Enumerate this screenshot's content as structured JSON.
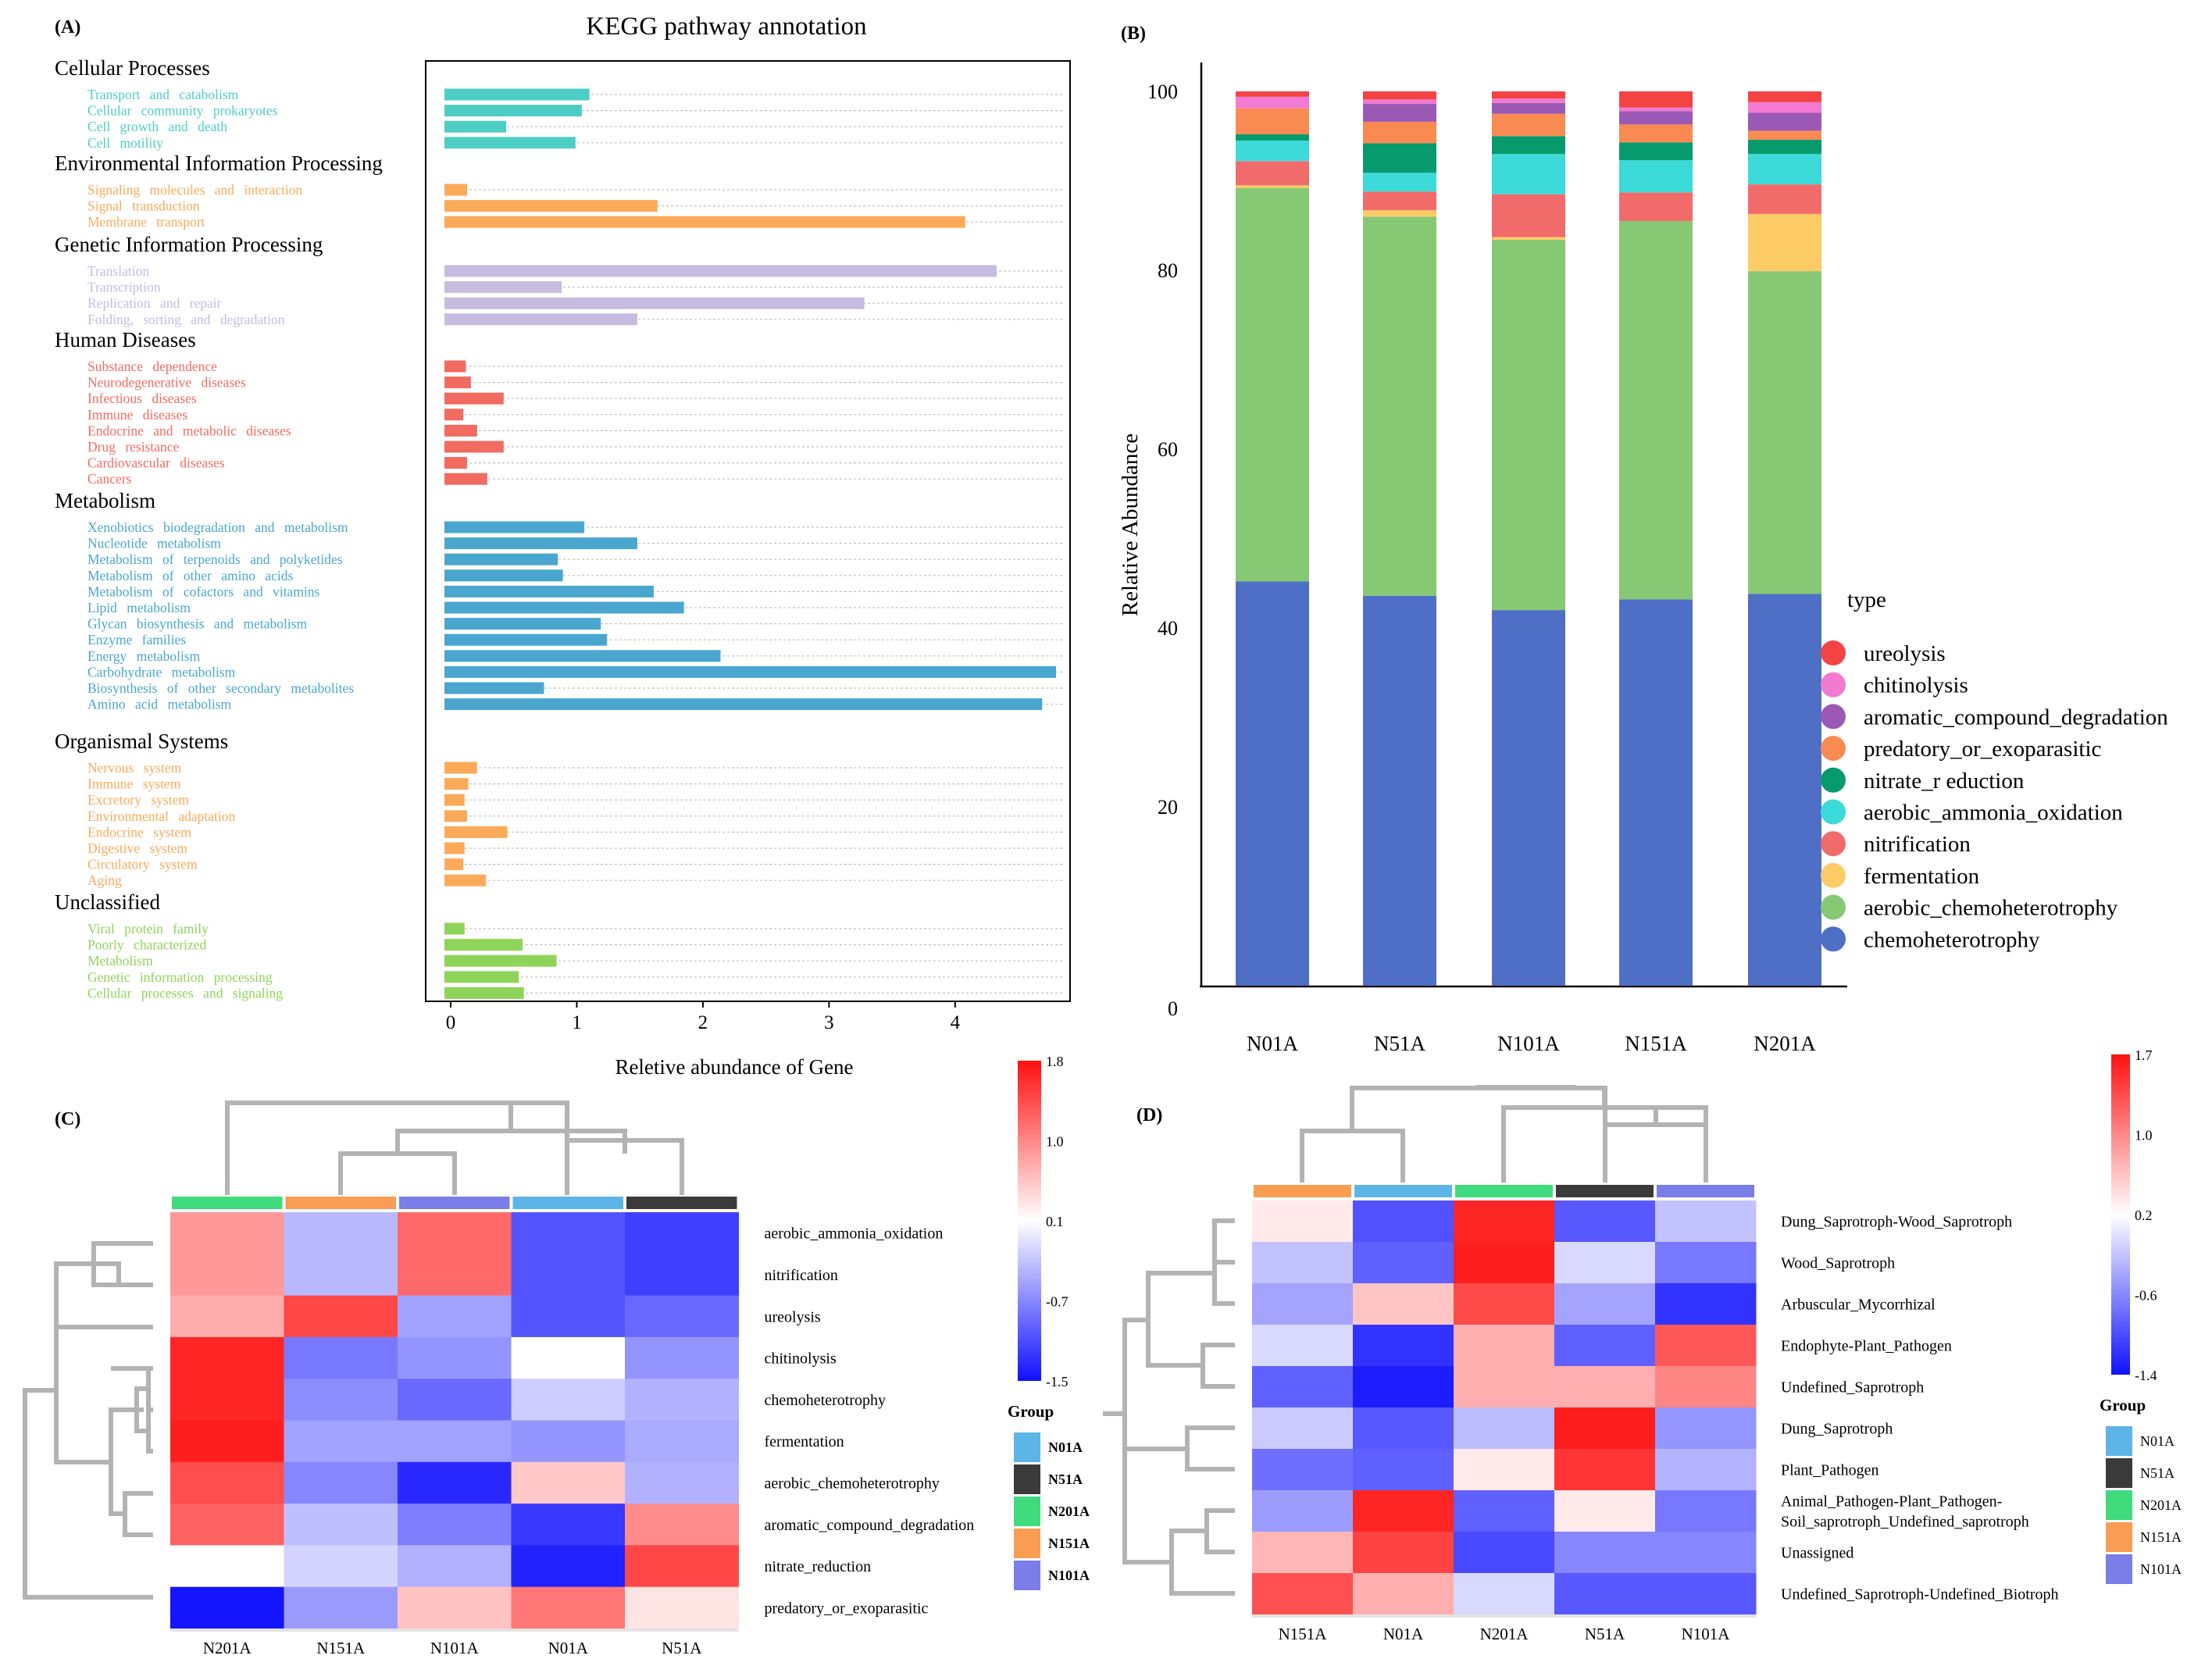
{
  "chart_data": [
    {
      "panel": "(A)",
      "type": "bar",
      "orientation": "horizontal",
      "title": "KEGG pathway annotation",
      "xlabel": "Reletive abundance of Gene",
      "xlim": [
        -0.18,
        4.8
      ],
      "xticks": [
        0,
        1,
        2,
        3,
        4
      ],
      "groups": [
        {
          "name": "Cellular Processes",
          "color": "#4ecdc4",
          "items": [
            {
              "label": "Transport and catabolism",
              "value": 1.1
            },
            {
              "label": "Cellular community prokaryotes",
              "value": 1.04
            },
            {
              "label": "Cell growth and death",
              "value": 0.44
            },
            {
              "label": "Cell motility",
              "value": 0.99
            }
          ]
        },
        {
          "name": "Environmental Information Processing",
          "color": "#fbaa5a",
          "items": [
            {
              "label": "Signaling molecules and interaction",
              "value": 0.13
            },
            {
              "label": "Signal transduction",
              "value": 1.64
            },
            {
              "label": "Membrane transport",
              "value": 4.08
            }
          ]
        },
        {
          "name": "Genetic Information Processing",
          "color": "#c6bce0",
          "items": [
            {
              "label": "Translation",
              "value": 4.33
            },
            {
              "label": "Transcription",
              "value": 0.88
            },
            {
              "label": "Replication and repair",
              "value": 3.28
            },
            {
              "label": "Folding, sorting and degradation",
              "value": 1.48
            }
          ]
        },
        {
          "name": "Human Diseases",
          "color": "#f26b60",
          "items": [
            {
              "label": "Substance dependence",
              "value": 0.12
            },
            {
              "label": "Neurodegenerative diseases",
              "value": 0.16
            },
            {
              "label": "Infectious diseases",
              "value": 0.42
            },
            {
              "label": "Immune diseases",
              "value": 0.1
            },
            {
              "label": "Endocrine and metabolic diseases",
              "value": 0.21
            },
            {
              "label": "Drug resistance",
              "value": 0.42
            },
            {
              "label": "Cardiovascular diseases",
              "value": 0.13
            },
            {
              "label": "Cancers",
              "value": 0.29
            }
          ]
        },
        {
          "name": "Metabolism",
          "color": "#4aa6cf",
          "items": [
            {
              "label": "Xenobiotics biodegradation and metabolism",
              "value": 1.06
            },
            {
              "label": "Nucleotide metabolism",
              "value": 1.48
            },
            {
              "label": "Metabolism of terpenoids and polyketides",
              "value": 0.85
            },
            {
              "label": "Metabolism of other amino acids",
              "value": 0.89
            },
            {
              "label": "Metabolism of cofactors and vitamins",
              "value": 1.61
            },
            {
              "label": "Lipid metabolism",
              "value": 1.85
            },
            {
              "label": "Glycan biosynthesis and metabolism",
              "value": 1.19
            },
            {
              "label": "Enzyme families",
              "value": 1.24
            },
            {
              "label": "Energy metabolism",
              "value": 2.14
            },
            {
              "label": "Carbohydrate metabolism",
              "value": 4.8
            },
            {
              "label": "Biosynthesis of other secondary metabolites",
              "value": 0.74
            },
            {
              "label": "Amino acid metabolism",
              "value": 4.69
            }
          ]
        },
        {
          "name": "Organismal Systems",
          "color": "#fbaa5a",
          "items": [
            {
              "label": "Nervous system",
              "value": 0.21
            },
            {
              "label": "Immune system",
              "value": 0.14
            },
            {
              "label": "Excretory system",
              "value": 0.11
            },
            {
              "label": "Environmental adaptation",
              "value": 0.13
            },
            {
              "label": "Endocrine system",
              "value": 0.45
            },
            {
              "label": "Digestive system",
              "value": 0.11
            },
            {
              "label": "Circulatory system",
              "value": 0.1
            },
            {
              "label": "Aging",
              "value": 0.28
            }
          ]
        },
        {
          "name": "Unclassified",
          "color": "#8fd45a",
          "items": [
            {
              "label": "Viral protein family",
              "value": 0.11
            },
            {
              "label": "Poorly characterized",
              "value": 0.57
            },
            {
              "label": "Metabolism",
              "value": 0.84
            },
            {
              "label": "Genetic information processing",
              "value": 0.54
            },
            {
              "label": "Cellular processes and signaling",
              "value": 0.58
            }
          ]
        }
      ]
    },
    {
      "panel": "(B)",
      "type": "stacked-bar",
      "ylabel": "Relative Abundance",
      "ylim": [
        0,
        103
      ],
      "yticks": [
        0,
        20,
        40,
        60,
        80,
        100
      ],
      "categories": [
        "N01A",
        "N51A",
        "N101A",
        "N151A",
        "N201A"
      ],
      "legend_title": "type",
      "series": [
        {
          "name": "chemoheterotrophy",
          "color": "#4f6fc6",
          "values": [
            45.2,
            43.6,
            42,
            43.2,
            43.8
          ]
        },
        {
          "name": "aerobic_chemoheterotrophy",
          "color": "#86c874",
          "values": [
            44,
            42.4,
            41.4,
            42.3,
            36.1
          ]
        },
        {
          "name": "fermentation",
          "color": "#fdcc66",
          "values": [
            0.3,
            0.7,
            0.3,
            0,
            6.4
          ]
        },
        {
          "name": "nitrification",
          "color": "#f26b6b",
          "values": [
            2.7,
            2.1,
            4.8,
            3.2,
            3.3
          ]
        },
        {
          "name": "aerobic_ammonia_oxidation",
          "color": "#3cdad8",
          "values": [
            2.3,
            2.1,
            4.5,
            3.6,
            3.4
          ]
        },
        {
          "name": "nitrate_r eduction",
          "color": "#079a6c",
          "values": [
            0.7,
            3.3,
            2,
            2,
            1.6
          ]
        },
        {
          "name": "predatory_or_exoparasitic",
          "color": "#f98a52",
          "values": [
            2.9,
            2.4,
            2.5,
            2,
            1
          ]
        },
        {
          "name": "aromatic_compound_degradation",
          "color": "#9b59b6",
          "values": [
            0,
            2,
            1.2,
            1.5,
            2
          ]
        },
        {
          "name": "chitinolysis",
          "color": "#f27ad0",
          "values": [
            1.3,
            0.5,
            0.5,
            0.4,
            1.2
          ]
        },
        {
          "name": "ureolysis",
          "color": "#f44343",
          "values": [
            0.6,
            0.9,
            0.8,
            1.8,
            1.2
          ]
        }
      ]
    },
    {
      "panel": "(C)",
      "type": "heatmap",
      "columns": [
        "N201A",
        "N151A",
        "N101A",
        "N01A",
        "N51A"
      ],
      "rows": [
        "aerobic_ammonia_oxidation",
        "nitrification",
        "ureolysis",
        "chitinolysis",
        "chemoheterotrophy",
        "fermentation",
        "aerobic_chemoheterotrophy",
        "aromatic_compound_degradation",
        "nitrate_reduction",
        "predatory_or_exoparasitic"
      ],
      "values": [
        [
          0.9,
          -0.35,
          1.25,
          -1.05,
          -1.2
        ],
        [
          0.9,
          -0.35,
          1.25,
          -1.05,
          -1.2
        ],
        [
          0.75,
          1.5,
          -0.5,
          -1.05,
          -0.9
        ],
        [
          1.75,
          -0.8,
          -0.6,
          0.15,
          -0.6
        ],
        [
          1.75,
          -0.65,
          -0.9,
          -0.2,
          -0.4
        ],
        [
          1.8,
          -0.5,
          -0.5,
          -0.6,
          -0.45
        ],
        [
          1.45,
          -0.7,
          -1.35,
          0.55,
          -0.4
        ],
        [
          1.3,
          -0.3,
          -0.75,
          -1.25,
          1
        ],
        [
          0.15,
          -0.15,
          -0.4,
          -1.4,
          1.5
        ],
        [
          -1.5,
          -0.55,
          0.6,
          1.15,
          0.35
        ]
      ],
      "colorbar": {
        "ticks": [
          "1.8",
          "1.0",
          "0.1",
          "-0.7",
          "-1.5"
        ],
        "min": -1.5,
        "max": 1.8
      },
      "legend_title": "Group",
      "legend": [
        {
          "name": "N01A",
          "color": "#5db4e6"
        },
        {
          "name": "N51A",
          "color": "#3a3a3a"
        },
        {
          "name": "N201A",
          "color": "#3fdb7d"
        },
        {
          "name": "N151A",
          "color": "#f89d53"
        },
        {
          "name": "N101A",
          "color": "#7b7de8"
        }
      ],
      "column_colors": [
        "#3fdb7d",
        "#f89d53",
        "#7b7de8",
        "#5db4e6",
        "#3a3a3a"
      ]
    },
    {
      "panel": "(D)",
      "type": "heatmap",
      "columns": [
        "N151A",
        "N01A",
        "N201A",
        "N51A",
        "N101A"
      ],
      "rows": [
        "Dung_Saprotroph-Wood_Saprotroph",
        "Wood_Saprotroph",
        "Arbuscular_Mycorrhizal",
        "Endophyte-Plant_Pathogen",
        "Undefined_Saprotroph",
        "Dung_Saprotroph",
        "Plant_Pathogen",
        "Animal_Pathogen-Plant_Pathogen-\nSoil_saprotroph_Undefined_saprotroph",
        "Unassigned",
        "Undefined_Saprotroph-Undefined_Biotroph"
      ],
      "values": [
        [
          0.3,
          -1,
          1.65,
          -0.95,
          -0.25
        ],
        [
          -0.25,
          -0.9,
          1.7,
          -0.1,
          -0.75
        ],
        [
          -0.45,
          0.55,
          1.4,
          -0.45,
          -1.2
        ],
        [
          -0.1,
          -1.2,
          0.7,
          -0.9,
          1.3
        ],
        [
          -0.9,
          -1.35,
          0.7,
          0.7,
          1
        ],
        [
          -0.2,
          -0.95,
          -0.3,
          1.7,
          -0.55
        ],
        [
          -0.8,
          -0.9,
          0.3,
          1.55,
          -0.35
        ],
        [
          -0.5,
          1.65,
          -0.9,
          0.3,
          -0.75
        ],
        [
          0.65,
          1.45,
          -1.05,
          -0.65,
          -0.65
        ],
        [
          1.35,
          0.7,
          -0.1,
          -0.95,
          -0.95
        ]
      ],
      "colorbar": {
        "ticks": [
          "1.7",
          "1.0",
          "0.2",
          "-0.6",
          "-1.4"
        ],
        "min": -1.4,
        "max": 1.7
      },
      "legend_title": "Group",
      "legend": [
        {
          "name": "N01A",
          "color": "#5db4e6"
        },
        {
          "name": "N51A",
          "color": "#3a3a3a"
        },
        {
          "name": "N201A",
          "color": "#3fdb7d"
        },
        {
          "name": "N151A",
          "color": "#f89d53"
        },
        {
          "name": "N101A",
          "color": "#7b7de8"
        }
      ],
      "column_colors": [
        "#f89d53",
        "#5db4e6",
        "#3fdb7d",
        "#3a3a3a",
        "#7b7de8"
      ]
    }
  ]
}
